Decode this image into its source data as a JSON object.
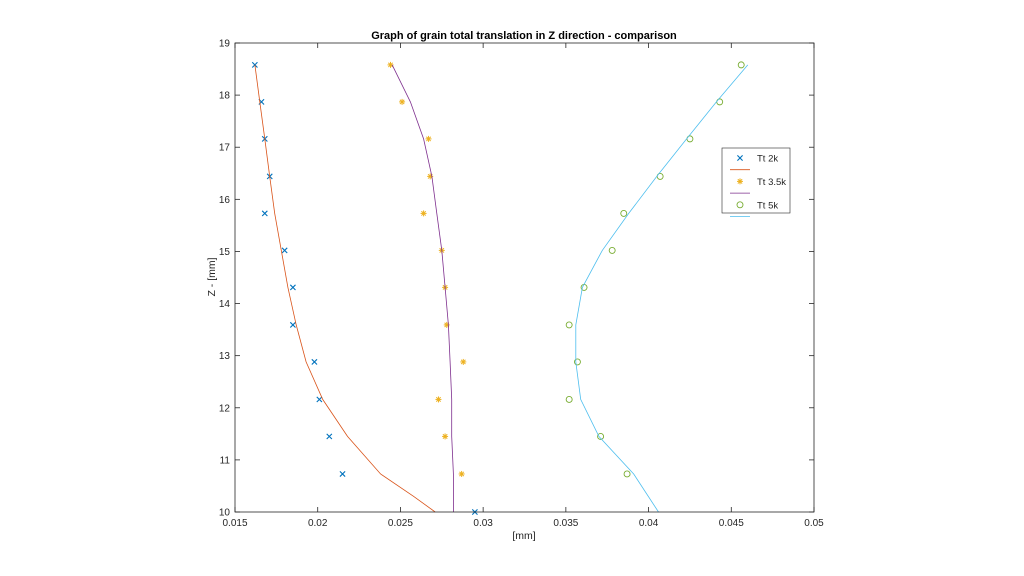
{
  "chart_data": {
    "type": "scatter",
    "title": "Graph of grain total translation in Z direction - comparison",
    "xlabel": "[mm]",
    "ylabel": "Z - [mm]",
    "xlim": [
      0.015,
      0.05
    ],
    "ylim": [
      10,
      19
    ],
    "x_ticks": [
      "0.015",
      "0.02",
      "0.025",
      "0.03",
      "0.035",
      "0.04",
      "0.045",
      "0.05"
    ],
    "y_ticks": [
      "10",
      "11",
      "12",
      "13",
      "14",
      "15",
      "16",
      "17",
      "18",
      "19"
    ],
    "grid": false,
    "legend_position": "right",
    "legend": [
      "Tt 2k",
      "",
      "Tt 3.5k",
      "",
      "Tt 5k"
    ],
    "series": [
      {
        "name": "Tt 2k",
        "kind": "scatter",
        "marker": "x",
        "color": "#0072bd",
        "x": [
          0.0162,
          0.0166,
          0.0168,
          0.0171,
          0.0168,
          0.018,
          0.0185,
          0.0185,
          0.0198,
          0.0201,
          0.0207,
          0.0215,
          0.0295
        ],
        "y": [
          18.58,
          17.87,
          17.16,
          16.44,
          15.73,
          15.02,
          14.31,
          13.59,
          12.88,
          12.16,
          11.45,
          10.73,
          10.0
        ]
      },
      {
        "kind": "line",
        "color": "#d95319",
        "x": [
          0.0162,
          0.0165,
          0.0168,
          0.0171,
          0.0174,
          0.0178,
          0.0182,
          0.0187,
          0.0193,
          0.0203,
          0.0218,
          0.0238,
          0.0258,
          0.0271
        ],
        "y": [
          18.58,
          17.87,
          17.16,
          16.44,
          15.73,
          15.02,
          14.31,
          13.59,
          12.88,
          12.16,
          11.45,
          10.73,
          10.3,
          10.0
        ]
      },
      {
        "name": "Tt 3.5k",
        "kind": "scatter",
        "marker": "asterisk",
        "color": "#edb120",
        "x": [
          0.0244,
          0.0251,
          0.0267,
          0.0268,
          0.0264,
          0.0275,
          0.0277,
          0.0278,
          0.0288,
          0.0273,
          0.0277,
          0.0287
        ],
        "y": [
          18.58,
          17.87,
          17.16,
          16.44,
          15.73,
          15.02,
          14.31,
          13.59,
          12.88,
          12.16,
          11.45,
          10.73
        ]
      },
      {
        "kind": "line",
        "color": "#7e2f8e",
        "x": [
          0.0245,
          0.0256,
          0.0264,
          0.0269,
          0.0272,
          0.0275,
          0.0277,
          0.0279,
          0.028,
          0.0281,
          0.0281,
          0.0282,
          0.0282
        ],
        "y": [
          18.58,
          17.87,
          17.16,
          16.44,
          15.73,
          15.02,
          14.31,
          13.59,
          12.88,
          12.16,
          11.45,
          10.73,
          10.0
        ]
      },
      {
        "name": "Tt 5k",
        "kind": "scatter",
        "marker": "circle",
        "color": "#77ac30",
        "x": [
          0.0456,
          0.0443,
          0.0425,
          0.0407,
          0.0385,
          0.0378,
          0.0361,
          0.0352,
          0.0357,
          0.0352,
          0.0371,
          0.0387
        ],
        "y": [
          18.58,
          17.87,
          17.16,
          16.44,
          15.73,
          15.02,
          14.31,
          13.59,
          12.88,
          12.16,
          11.45,
          10.73
        ]
      },
      {
        "kind": "line",
        "color": "#4dbeee",
        "x": [
          0.046,
          0.0441,
          0.0423,
          0.0405,
          0.0388,
          0.0372,
          0.036,
          0.0356,
          0.0356,
          0.0359,
          0.037,
          0.0391,
          0.0406
        ],
        "y": [
          18.58,
          17.87,
          17.16,
          16.44,
          15.73,
          15.02,
          14.31,
          13.59,
          12.88,
          12.16,
          11.45,
          10.73,
          10.0
        ]
      }
    ]
  }
}
